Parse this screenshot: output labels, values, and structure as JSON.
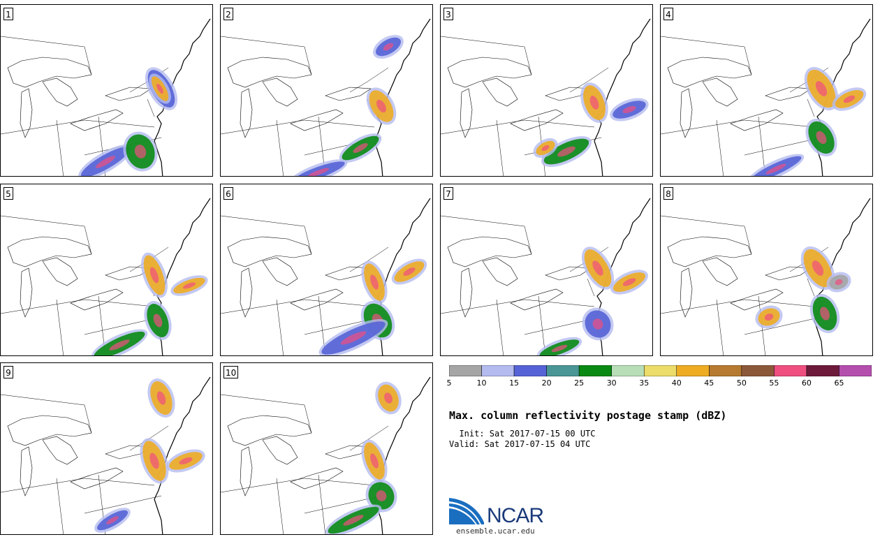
{
  "panels": [
    {
      "label": "1"
    },
    {
      "label": "2"
    },
    {
      "label": "3"
    },
    {
      "label": "4"
    },
    {
      "label": "5"
    },
    {
      "label": "6"
    },
    {
      "label": "7"
    },
    {
      "label": "8"
    },
    {
      "label": "9"
    },
    {
      "label": "10"
    }
  ],
  "colorbar": {
    "colors": [
      "#a5a5a5",
      "#b4bcef",
      "#5563d6",
      "#4a9696",
      "#0a8a13",
      "#b8deb8",
      "#ecdc6a",
      "#eeac22",
      "#b67b30",
      "#8c583a",
      "#ef4f80",
      "#6e1a3b",
      "#b54fae"
    ],
    "labels": [
      "5",
      "10",
      "15",
      "20",
      "25",
      "30",
      "35",
      "40",
      "45",
      "50",
      "55",
      "60",
      "65"
    ]
  },
  "title": "Max. column reflectivity postage stamp (dBZ)",
  "init_line": "  Init: Sat 2017-07-15 00 UTC",
  "valid_line": "Valid: Sat 2017-07-15 04 UTC",
  "logo": {
    "text": "NCAR",
    "color": "#1a3a7a",
    "swoosh": "#1a6ec0"
  },
  "footer": "ensemble.ucar.edu"
}
